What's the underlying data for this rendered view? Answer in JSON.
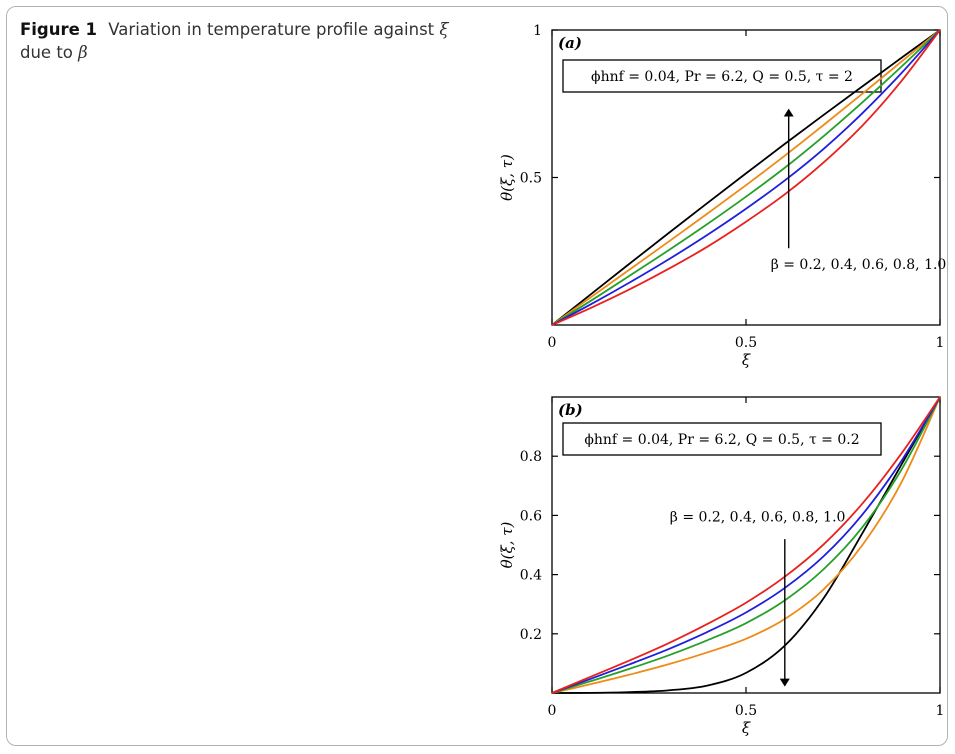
{
  "caption": {
    "label": "Figure 1",
    "text_before": "Variation in temperature profile against",
    "xi_symbol": "ξ",
    "text_mid": "due to",
    "beta_symbol": "β"
  },
  "chart_data": [
    {
      "type": "line",
      "panel_label": "(a)",
      "xlabel": "ξ",
      "ylabel": "θ(ξ, τ)",
      "xlim": [
        0,
        1
      ],
      "ylim": [
        0,
        1
      ],
      "x_ticks": [
        0,
        0.5,
        1
      ],
      "x_tick_labels": [
        "0",
        "0.5",
        "1"
      ],
      "y_ticks": [
        0.5,
        1
      ],
      "y_tick_labels": [
        "0.5",
        "1"
      ],
      "grid": false,
      "parameter_box": "ϕhnf = 0.04, Pr = 6.2, Q = 0.5, τ = 2",
      "annotation": "β = 0.2, 0.4, 0.6, 0.8, 1.0",
      "arrow": {
        "x": 0.61,
        "from_y": 0.26,
        "to_y": 0.72
      },
      "x": [
        0,
        0.1,
        0.2,
        0.3,
        0.4,
        0.5,
        0.6,
        0.7,
        0.8,
        0.9,
        1.0
      ],
      "series": [
        {
          "color": "#000000",
          "values": [
            0,
            0.104,
            0.208,
            0.311,
            0.413,
            0.514,
            0.614,
            0.712,
            0.809,
            0.905,
            1.0
          ]
        },
        {
          "color": "#ef8a17",
          "values": [
            0,
            0.094,
            0.188,
            0.282,
            0.377,
            0.474,
            0.574,
            0.678,
            0.784,
            0.892,
            1.0
          ]
        },
        {
          "color": "#27a02b",
          "values": [
            0,
            0.082,
            0.167,
            0.253,
            0.342,
            0.435,
            0.533,
            0.64,
            0.755,
            0.875,
            1.0
          ]
        },
        {
          "color": "#1f1fdc",
          "values": [
            0,
            0.07,
            0.144,
            0.222,
            0.305,
            0.394,
            0.49,
            0.597,
            0.718,
            0.853,
            1.0
          ]
        },
        {
          "color": "#e8211d",
          "values": [
            0,
            0.058,
            0.121,
            0.19,
            0.265,
            0.35,
            0.443,
            0.551,
            0.676,
            0.826,
            1.0
          ]
        }
      ]
    },
    {
      "type": "line",
      "panel_label": "(b)",
      "xlabel": "ξ",
      "ylabel": "θ(ξ, τ)",
      "xlim": [
        0,
        1
      ],
      "ylim": [
        0,
        1
      ],
      "x_ticks": [
        0,
        0.5,
        1
      ],
      "x_tick_labels": [
        "0",
        "0.5",
        "1"
      ],
      "y_ticks": [
        0.2,
        0.4,
        0.6,
        0.8
      ],
      "y_tick_labels": [
        "0.2",
        "0.4",
        "0.6",
        "0.8"
      ],
      "grid": false,
      "parameter_box": "ϕhnf = 0.04, Pr = 6.2, Q = 0.5, τ = 0.2",
      "annotation": "β = 0.2, 0.4, 0.6, 0.8, 1.0",
      "arrow": {
        "x": 0.6,
        "from_y": 0.52,
        "to_y": 0.035
      },
      "x": [
        0,
        0.1,
        0.2,
        0.3,
        0.4,
        0.5,
        0.6,
        0.7,
        0.8,
        0.9,
        1.0
      ],
      "series": [
        {
          "color": "#000000",
          "values": [
            0,
            0.0005,
            0.003,
            0.009,
            0.025,
            0.068,
            0.16,
            0.32,
            0.54,
            0.77,
            1.0
          ]
        },
        {
          "color": "#ef8a17",
          "values": [
            0,
            0.03,
            0.062,
            0.097,
            0.137,
            0.183,
            0.25,
            0.35,
            0.5,
            0.71,
            1.0
          ]
        },
        {
          "color": "#27a02b",
          "values": [
            0,
            0.04,
            0.082,
            0.127,
            0.178,
            0.236,
            0.313,
            0.418,
            0.56,
            0.753,
            1.0
          ]
        },
        {
          "color": "#1f1fdc",
          "values": [
            0,
            0.048,
            0.097,
            0.148,
            0.206,
            0.272,
            0.355,
            0.462,
            0.603,
            0.783,
            1.0
          ]
        },
        {
          "color": "#e8211d",
          "values": [
            0,
            0.055,
            0.11,
            0.168,
            0.233,
            0.305,
            0.393,
            0.502,
            0.64,
            0.808,
            1.0
          ]
        }
      ]
    }
  ]
}
